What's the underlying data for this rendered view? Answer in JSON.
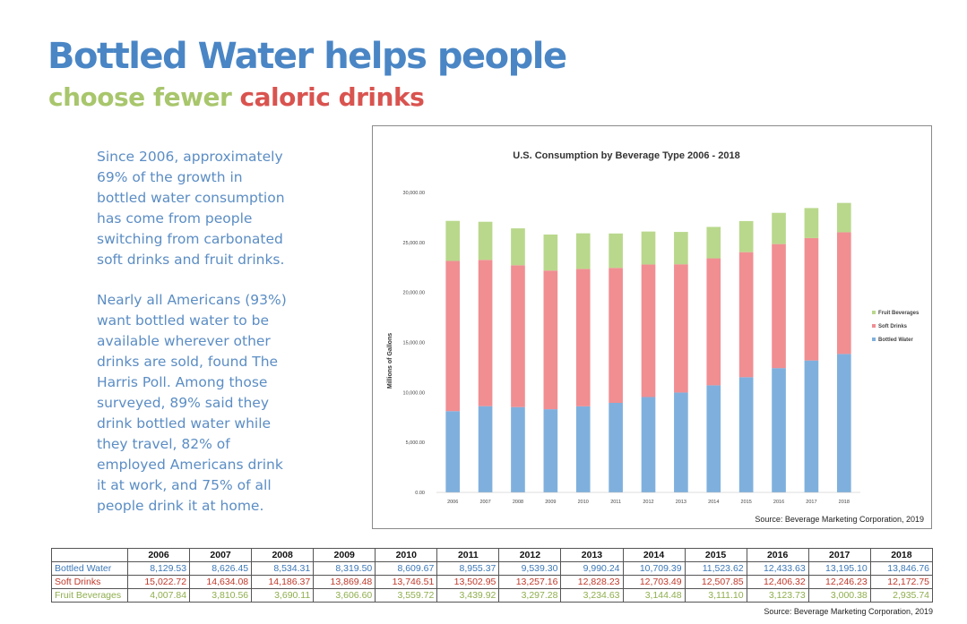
{
  "header": {
    "title": "Bottled Water helps people",
    "subtitle_part1": "choose fewer",
    "subtitle_part2": "caloric drinks"
  },
  "body": {
    "paragraph1": [
      "Since 2006, approximately",
      "69% of the growth in",
      "bottled water consumption",
      "has come from people",
      "switching from carbonated",
      "soft drinks and fruit drinks."
    ],
    "paragraph2": [
      "Nearly all Americans (93%)",
      "want bottled water to be",
      "available wherever other",
      "drinks are sold, found The",
      "Harris Poll. Among those",
      "surveyed, 89% said they",
      "drink bottled water while",
      "they travel, 82% of",
      "employed Americans drink",
      "it at work, and 75% of all",
      "people drink it at home."
    ]
  },
  "chart_source": "Source: Beverage Marketing Corporation, 2019",
  "table_source": "Source: Beverage Marketing Corporation, 2019",
  "colors": {
    "bottled_water": "#7fb0dd",
    "soft_drinks": "#f08e92",
    "fruit_beverages": "#b9d88c",
    "title_blue": "#4a86c5"
  },
  "chart_data": {
    "type": "bar",
    "stacked": true,
    "title": "U.S. Consumption by Beverage Type 2006 - 2018",
    "xlabel": "",
    "ylabel": "Millions of Gallons",
    "ylim": [
      0,
      30000
    ],
    "yticks": [
      "0.00",
      "5,000.00",
      "10,000.00",
      "15,000.00",
      "20,000.00",
      "25,000.00",
      "30,000.00"
    ],
    "grid": false,
    "legend_position": "right",
    "categories": [
      "2006",
      "2007",
      "2008",
      "2009",
      "2010",
      "2011",
      "2012",
      "2013",
      "2014",
      "2015",
      "2016",
      "2017",
      "2018"
    ],
    "series": [
      {
        "name": "Bottled Water",
        "values": [
          8129.53,
          8626.45,
          8534.31,
          8319.5,
          8609.67,
          8955.37,
          9539.3,
          9990.24,
          10709.39,
          11523.62,
          12433.63,
          13195.1,
          13846.76
        ]
      },
      {
        "name": "Soft Drinks",
        "values": [
          15022.72,
          14634.08,
          14186.37,
          13869.48,
          13746.51,
          13502.95,
          13257.16,
          12828.23,
          12703.49,
          12507.85,
          12406.32,
          12246.23,
          12172.75
        ]
      },
      {
        "name": "Fruit Beverages",
        "values": [
          4007.84,
          3810.56,
          3690.11,
          3606.6,
          3559.72,
          3439.92,
          3297.28,
          3234.63,
          3144.48,
          3111.1,
          3123.73,
          3000.38,
          2935.74
        ]
      }
    ],
    "legend_entries": [
      "Fruit Beverages",
      "Soft Drinks",
      "Bottled Water"
    ]
  },
  "table": {
    "years": [
      "2006",
      "2007",
      "2008",
      "2009",
      "2010",
      "2011",
      "2012",
      "2013",
      "2014",
      "2015",
      "2016",
      "2017",
      "2018"
    ],
    "rows": [
      {
        "label": "Bottled Water",
        "values": [
          "8,129.53",
          "8,626.45",
          "8,534.31",
          "8,319.50",
          "8,609.67",
          "8,955.37",
          "9,539.30",
          "9,990.24",
          "10,709.39",
          "11,523.62",
          "12,433.63",
          "13,195.10",
          "13,846.76"
        ]
      },
      {
        "label": "Soft Drinks",
        "values": [
          "15,022.72",
          "14,634.08",
          "14,186.37",
          "13,869.48",
          "13,746.51",
          "13,502.95",
          "13,257.16",
          "12,828.23",
          "12,703.49",
          "12,507.85",
          "12,406.32",
          "12,246.23",
          "12,172.75"
        ]
      },
      {
        "label": "Fruit Beverages",
        "values": [
          "4,007.84",
          "3,810.56",
          "3,690.11",
          "3,606.60",
          "3,559.72",
          "3,439.92",
          "3,297.28",
          "3,234.63",
          "3,144.48",
          "3,111.10",
          "3,123.73",
          "3,000.38",
          "2,935.74"
        ]
      }
    ]
  }
}
